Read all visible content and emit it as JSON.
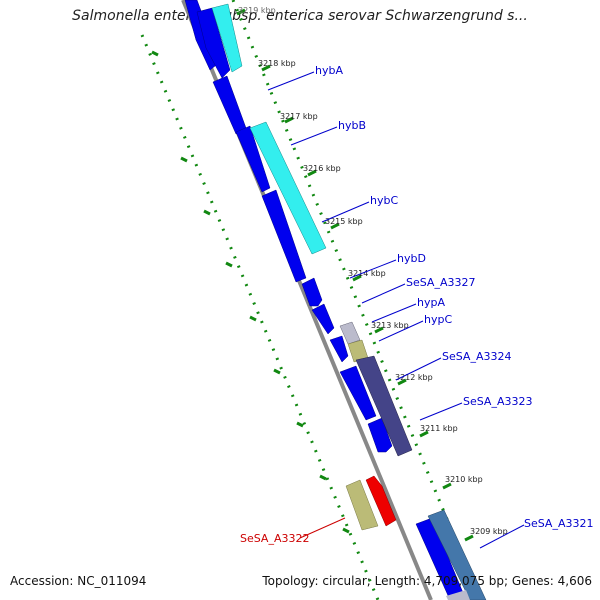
{
  "title": "Salmonella enterica subsp. enterica serovar Schwarzengrund s...",
  "accession": "Accession: NC_011094",
  "stats": "Topology: circular; Length: 4,709,075 bp; Genes: 4,606",
  "kbp_labels": [
    "3219 kbp",
    "3218 kbp",
    "3217 kbp",
    "3216 kbp",
    "3215 kbp",
    "3214 kbp",
    "3213 kbp",
    "3212 kbp",
    "3211 kbp",
    "3210 kbp",
    "3209 kbp"
  ],
  "gene_labels": [
    {
      "text": "hybA",
      "color": "#0000cc"
    },
    {
      "text": "hybB",
      "color": "#0000cc"
    },
    {
      "text": "hybC",
      "color": "#0000cc"
    },
    {
      "text": "hybD",
      "color": "#0000cc"
    },
    {
      "text": "SeSA_A3327",
      "color": "#0000cc"
    },
    {
      "text": "hypA",
      "color": "#0000cc"
    },
    {
      "text": "hypC",
      "color": "#0000cc"
    },
    {
      "text": "SeSA_A3324",
      "color": "#0000cc"
    },
    {
      "text": "SeSA_A3323",
      "color": "#0000cc"
    },
    {
      "text": "SeSA_A3322",
      "color": "#cc0000"
    },
    {
      "text": "SeSA_A3321",
      "color": "#0000cc"
    }
  ],
  "colors": {
    "cds_blue": "#0000ee",
    "cyan": "#33eeee",
    "backbone": "#888888",
    "gc_green": "#118811",
    "red": "#ee0000",
    "khaki": "#bbbb77",
    "lilac": "#bbbbcc",
    "slate": "#444488",
    "steel": "#4477aa"
  }
}
